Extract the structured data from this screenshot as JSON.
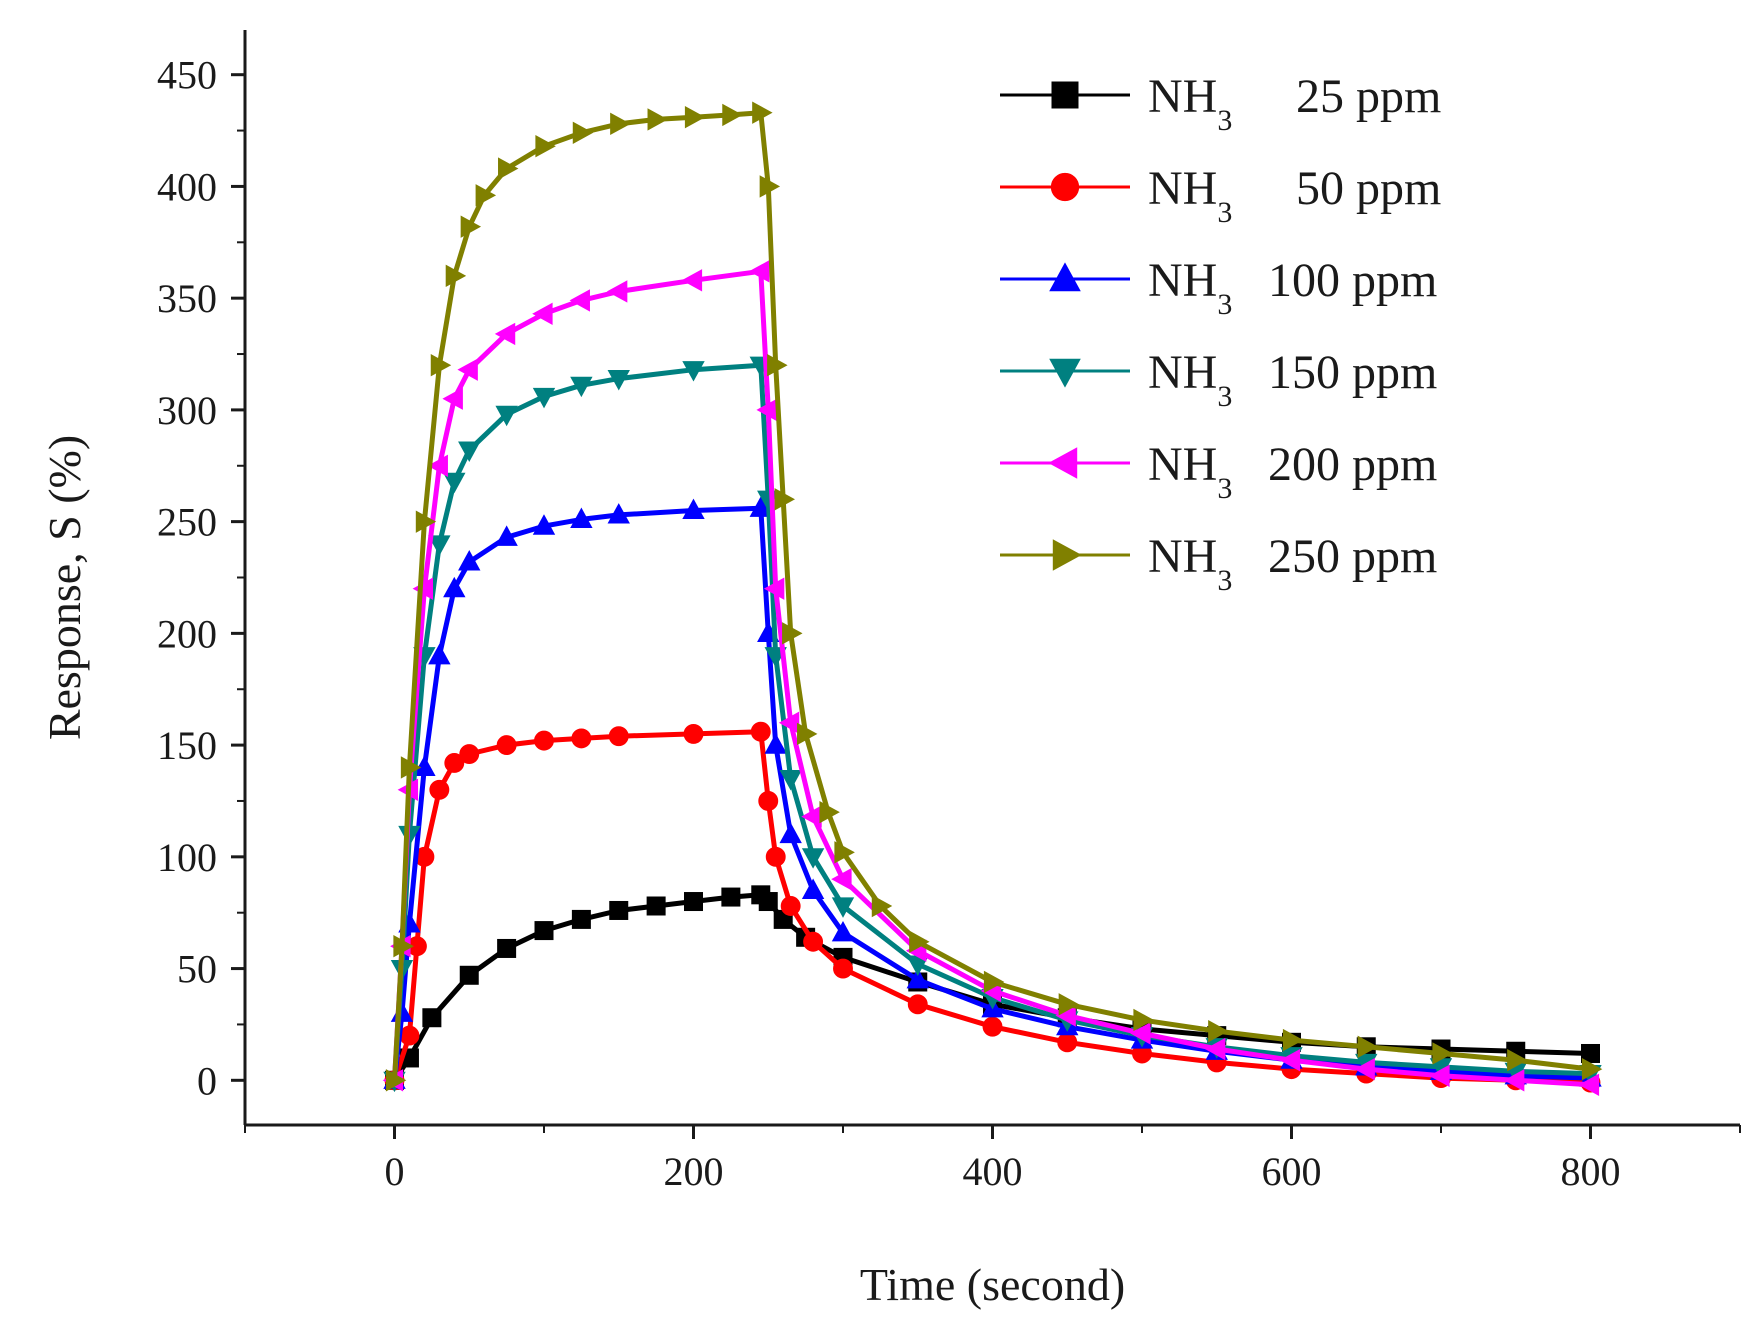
{
  "chart_data": {
    "type": "scatter",
    "title": "",
    "xlabel": "Time (second)",
    "ylabel": "Response, S (%)",
    "xlim": [
      -100,
      900
    ],
    "ylim": [
      -20,
      470
    ],
    "x_ticks": [
      0,
      200,
      400,
      600,
      800
    ],
    "x_tick_labels": [
      "0",
      "200",
      "400",
      "600",
      "800"
    ],
    "y_ticks": [
      0,
      50,
      100,
      150,
      200,
      250,
      300,
      350,
      400,
      450
    ],
    "y_tick_labels": [
      "0",
      "50",
      "100",
      "150",
      "200",
      "250",
      "300",
      "350",
      "400",
      "450"
    ],
    "grid": false,
    "legend_position": "top-right",
    "series": [
      {
        "name": "NH3 25 ppm",
        "legend_main": "NH",
        "legend_sub": "3",
        "legend_rest": "25 ppm",
        "color": "#000000",
        "marker": "square",
        "x": [
          0,
          10,
          25,
          50,
          75,
          100,
          125,
          150,
          175,
          200,
          225,
          245,
          250,
          260,
          275,
          300,
          350,
          400,
          450,
          500,
          550,
          600,
          650,
          700,
          750,
          800
        ],
        "y": [
          0,
          10,
          28,
          47,
          59,
          67,
          72,
          76,
          78,
          80,
          82,
          83,
          80,
          72,
          64,
          55,
          44,
          34,
          28,
          23,
          20,
          17,
          15,
          14,
          13,
          12
        ]
      },
      {
        "name": "NH3 50 ppm",
        "legend_main": "NH",
        "legend_sub": "3",
        "legend_rest": "50 ppm",
        "color": "#ff0000",
        "marker": "circle",
        "x": [
          0,
          10,
          15,
          20,
          30,
          40,
          50,
          75,
          100,
          125,
          150,
          200,
          245,
          250,
          255,
          265,
          280,
          300,
          350,
          400,
          450,
          500,
          550,
          600,
          650,
          700,
          750,
          800
        ],
        "y": [
          0,
          20,
          60,
          100,
          130,
          142,
          146,
          150,
          152,
          153,
          154,
          155,
          156,
          125,
          100,
          78,
          62,
          50,
          34,
          24,
          17,
          12,
          8,
          5,
          3,
          1,
          0,
          -1
        ]
      },
      {
        "name": "NH3 100 ppm",
        "legend_main": "NH",
        "legend_sub": "3",
        "legend_rest": "100 ppm",
        "color": "#0000ff",
        "marker": "triangle-up",
        "x": [
          0,
          5,
          10,
          20,
          30,
          40,
          50,
          75,
          100,
          125,
          150,
          200,
          245,
          250,
          255,
          265,
          280,
          300,
          350,
          400,
          450,
          500,
          550,
          600,
          650,
          700,
          750,
          800
        ],
        "y": [
          0,
          30,
          70,
          140,
          190,
          220,
          232,
          243,
          248,
          251,
          253,
          255,
          256,
          200,
          150,
          110,
          85,
          66,
          45,
          32,
          24,
          18,
          13,
          9,
          6,
          4,
          2,
          1
        ]
      },
      {
        "name": "NH3 150 ppm",
        "legend_main": "NH",
        "legend_sub": "3",
        "legend_rest": "150 ppm",
        "color": "#008080",
        "marker": "triangle-down",
        "x": [
          0,
          5,
          10,
          20,
          30,
          40,
          50,
          75,
          100,
          125,
          150,
          200,
          245,
          250,
          255,
          265,
          280,
          300,
          350,
          400,
          450,
          500,
          550,
          600,
          650,
          700,
          750,
          800
        ],
        "y": [
          0,
          50,
          110,
          190,
          240,
          268,
          282,
          298,
          306,
          311,
          314,
          318,
          320,
          260,
          190,
          135,
          100,
          78,
          52,
          37,
          27,
          20,
          15,
          11,
          8,
          6,
          4,
          3
        ]
      },
      {
        "name": "NH3 200 ppm",
        "legend_main": "NH",
        "legend_sub": "3",
        "legend_rest": "200 ppm",
        "color": "#ff00ff",
        "marker": "triangle-left",
        "x": [
          0,
          5,
          10,
          20,
          30,
          40,
          50,
          75,
          100,
          125,
          150,
          200,
          245,
          250,
          255,
          265,
          280,
          300,
          350,
          400,
          450,
          500,
          550,
          600,
          650,
          700,
          750,
          800
        ],
        "y": [
          0,
          60,
          130,
          220,
          275,
          305,
          318,
          334,
          343,
          349,
          353,
          358,
          362,
          300,
          220,
          160,
          118,
          90,
          58,
          40,
          29,
          21,
          14,
          9,
          5,
          2,
          0,
          -2
        ]
      },
      {
        "name": "NH3 250 ppm",
        "legend_main": "NH",
        "legend_sub": "3",
        "legend_rest": "250 ppm",
        "color": "#808000",
        "marker": "triangle-right",
        "x": [
          0,
          5,
          10,
          20,
          30,
          40,
          50,
          60,
          75,
          100,
          125,
          150,
          175,
          200,
          225,
          245,
          250,
          255,
          260,
          265,
          275,
          290,
          300,
          325,
          350,
          400,
          450,
          500,
          550,
          600,
          650,
          700,
          750,
          800
        ],
        "y": [
          0,
          60,
          140,
          250,
          320,
          360,
          382,
          396,
          408,
          418,
          424,
          428,
          430,
          431,
          432,
          433,
          400,
          320,
          260,
          200,
          155,
          120,
          102,
          78,
          62,
          44,
          34,
          27,
          22,
          18,
          15,
          12,
          9,
          5
        ]
      }
    ]
  }
}
